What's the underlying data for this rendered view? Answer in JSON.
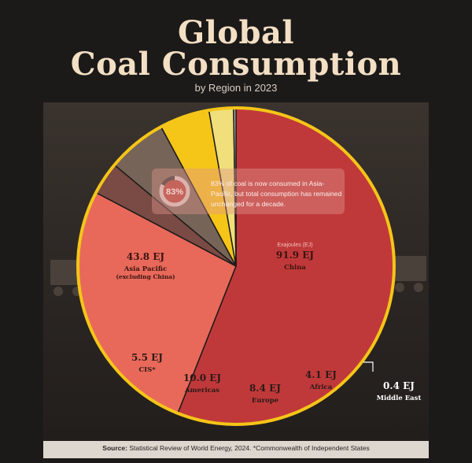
{
  "header": {
    "title_line1": "Global",
    "title_line2": "Coal Consumption",
    "subtitle": "by Region in 2023"
  },
  "callout": {
    "percent_text": "83%",
    "percent_value": 0.83,
    "text": "83% of coal is now consumed in Asia-Pacific, but total consumption has remained unchanged for a decade."
  },
  "unit_note": "Exajoules (EJ)",
  "footer": {
    "source_label": "Source:",
    "source_text": "Statistical Review of World Energy, 2024. *Commonwealth of Independent States"
  },
  "colors": {
    "china": "#c0393a",
    "asia_pacific": "#e8695a",
    "cis": "#7a4a44",
    "americas": "#776458",
    "europe": "#f5c518",
    "africa": "#f0df7a",
    "middle_east": "#b9b6b1",
    "rim": "#f5c518"
  },
  "chart_data": {
    "type": "pie",
    "title": "Global Coal Consumption",
    "subtitle": "by Region in 2023",
    "unit": "EJ",
    "slices": [
      {
        "key": "china",
        "value": 91.9,
        "value_label": "91.9 EJ",
        "name_lines": [
          "China"
        ]
      },
      {
        "key": "asia_pacific",
        "value": 43.8,
        "value_label": "43.8 EJ",
        "name_lines": [
          "Asia Pacific",
          "(excluding China)"
        ]
      },
      {
        "key": "cis",
        "value": 5.5,
        "value_label": "5.5 EJ",
        "name_lines": [
          "CIS*"
        ]
      },
      {
        "key": "americas",
        "value": 10.0,
        "value_label": "10.0 EJ",
        "name_lines": [
          "Americas"
        ]
      },
      {
        "key": "europe",
        "value": 8.4,
        "value_label": "8.4 EJ",
        "name_lines": [
          "Europe"
        ]
      },
      {
        "key": "africa",
        "value": 4.1,
        "value_label": "4.1 EJ",
        "name_lines": [
          "Africa"
        ]
      },
      {
        "key": "middle_east",
        "value": 0.4,
        "value_label": "0.4 EJ",
        "name_lines": [
          "Middle East"
        ]
      }
    ]
  }
}
